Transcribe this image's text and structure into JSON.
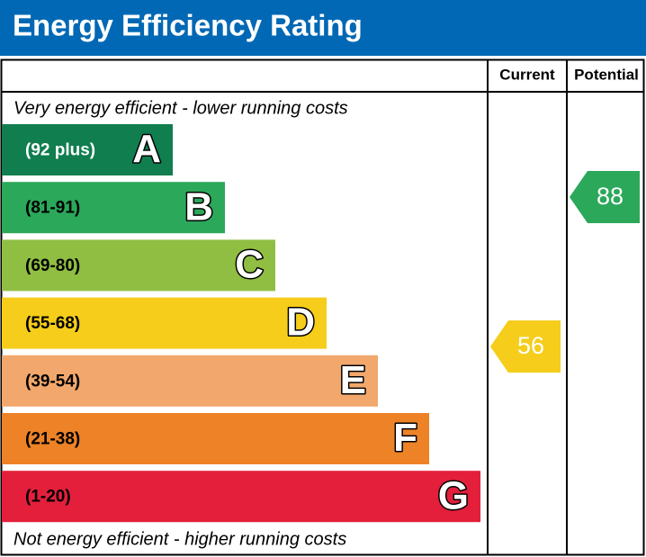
{
  "header": {
    "title": "Energy Efficiency Rating"
  },
  "columns": {
    "current": "Current",
    "potential": "Potential"
  },
  "top_note": "Very energy efficient - lower running costs",
  "bottom_note": "Not energy efficient - higher running costs",
  "bands": [
    {
      "range": "(92 plus)",
      "letter": "A",
      "color": "#107e4e"
    },
    {
      "range": "(81-91)",
      "letter": "B",
      "color": "#2ba85a"
    },
    {
      "range": "(69-80)",
      "letter": "C",
      "color": "#8fbe43"
    },
    {
      "range": "(55-68)",
      "letter": "D",
      "color": "#f5cd1a"
    },
    {
      "range": "(39-54)",
      "letter": "E",
      "color": "#f2a86c"
    },
    {
      "range": "(21-38)",
      "letter": "F",
      "color": "#ed8227"
    },
    {
      "range": "(1-20)",
      "letter": "G",
      "color": "#e31f3c"
    }
  ],
  "ratings": {
    "current": {
      "value": 56,
      "color": "#f5cd1a"
    },
    "potential": {
      "value": 88,
      "color": "#2ba85a"
    }
  }
}
